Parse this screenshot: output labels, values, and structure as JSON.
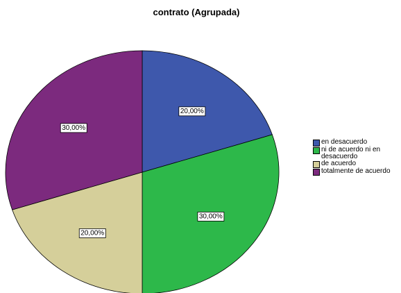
{
  "chart_data": {
    "type": "pie",
    "title": "contrato (Agrupada)",
    "categories": [
      "en desacuerdo",
      "ni de acuerdo ni en desacuerdo",
      "de acuerdo",
      "totalmente de acuerdo"
    ],
    "values": [
      20,
      30,
      20,
      30
    ],
    "value_labels": [
      "20,00%",
      "30,00%",
      "20,00%",
      "30,00%"
    ],
    "colors": [
      "#3e58ac",
      "#2db84a",
      "#d5cf9a",
      "#7c2a7e"
    ],
    "legend": "right"
  }
}
